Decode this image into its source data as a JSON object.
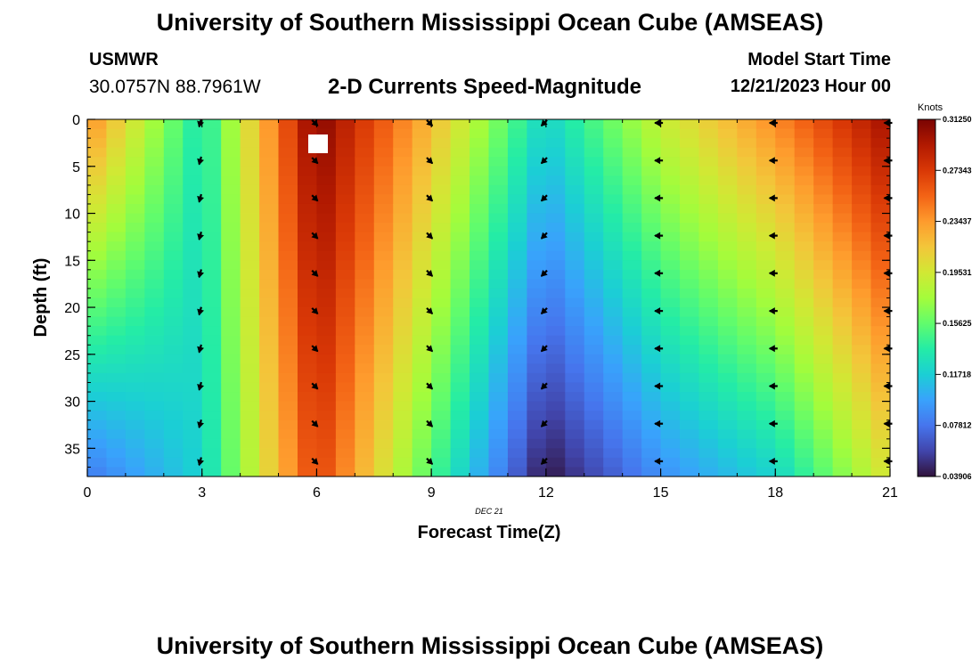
{
  "header": {
    "title": "University of Southern Mississippi Ocean Cube (AMSEAS)",
    "station_id": "USMWR",
    "coordinates": "30.0757N  88.7961W",
    "subtitle": "2-D Currents Speed-Magnitude",
    "model_start_label": "Model Start Time",
    "model_start_value": "12/21/2023 Hour 00"
  },
  "footer": {
    "title": "University of Southern Mississippi Ocean Cube (AMSEAS)"
  },
  "chart_data": {
    "type": "heatmap",
    "title": "2-D Currents Speed-Magnitude",
    "xlabel": "Forecast Time(Z)",
    "ylabel": "Depth (ft)",
    "date_label": "DEC 21",
    "xlim": [
      0,
      21
    ],
    "ylim": [
      38,
      0
    ],
    "x_ticks": [
      "0",
      "3",
      "6",
      "9",
      "12",
      "15",
      "18",
      "21"
    ],
    "y_ticks": [
      "0",
      "5",
      "10",
      "15",
      "20",
      "25",
      "30",
      "35"
    ],
    "colorbar": {
      "label": "Knots",
      "range": [
        0.039,
        0.3125
      ],
      "tick_labels": [
        "0.31250",
        "0.27343",
        "0.23437",
        "0.19531",
        "0.15625",
        "0.11718",
        "0.07812",
        "0.03906"
      ],
      "colors": [
        "#30123b",
        "#4145ab",
        "#4675ed",
        "#39a2fc",
        "#1bcfd4",
        "#24eca6",
        "#61fc6c",
        "#a4fc3b",
        "#d1e834",
        "#f3c63a",
        "#fe9b2d",
        "#f36315",
        "#d93806",
        "#b11901",
        "#7a0402"
      ]
    },
    "speed_grid": {
      "time_hours": [
        0,
        3,
        6,
        9,
        12,
        15,
        18,
        21
      ],
      "depths_ft": [
        0,
        5,
        10,
        15,
        20,
        25,
        30,
        35,
        38
      ],
      "surface_speeds": [
        0.24,
        0.13,
        0.31,
        0.22,
        0.12,
        0.19,
        0.24,
        0.3
      ],
      "bottom_speeds": [
        0.08,
        0.12,
        0.27,
        0.15,
        0.04,
        0.09,
        0.12,
        0.2
      ]
    },
    "current_arrows": [
      {
        "time": 3,
        "direction": "south-southwest"
      },
      {
        "time": 6,
        "direction": "southeast"
      },
      {
        "time": 9,
        "direction": "southeast"
      },
      {
        "time": 12,
        "direction": "southwest"
      },
      {
        "time": 15,
        "direction": "west"
      },
      {
        "time": 18,
        "direction": "west"
      },
      {
        "time": 21,
        "direction": "west"
      }
    ],
    "arrow_depths_ft": [
      0,
      4,
      8,
      12,
      16,
      20,
      24,
      28,
      32,
      36
    ]
  }
}
